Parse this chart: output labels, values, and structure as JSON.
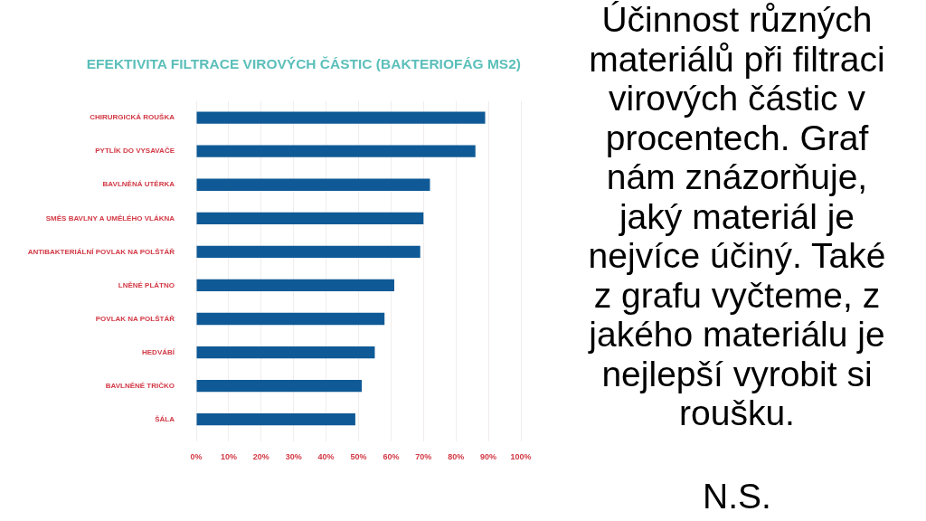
{
  "chart_data": {
    "type": "bar",
    "orientation": "horizontal",
    "title": "EFEKTIVITA FILTRACE VIROVÝCH ČÁSTIC (BAKTERIOFÁG MS2)",
    "categories": [
      "CHIRURGICKÁ ROUŠKA",
      "PYTLÍK DO VYSAVAČE",
      "BAVLNĚNÁ UTĚRKA",
      "SMĚS BAVLNY A UMĚLÉHO VLÁKNA",
      "ANTIBAKTERIÁLNÍ POVLAK NA POLŠTÁŘ",
      "LNĚNÉ PLÁTNO",
      "POVLAK NA POLŠTÁŘ",
      "HEDVÁBÍ",
      "BAVLNĚNÉ TRIČKO",
      "ŠÁLA"
    ],
    "values": [
      89,
      86,
      72,
      70,
      69,
      61,
      58,
      55,
      51,
      49
    ],
    "color": "#0f5a96",
    "xlim": [
      0,
      100
    ],
    "xticks": [
      {
        "value": 0,
        "label": "0%"
      },
      {
        "value": 10,
        "label": "10%"
      },
      {
        "value": 20,
        "label": "20%"
      },
      {
        "value": 30,
        "label": "30%"
      },
      {
        "value": 40,
        "label": "40%"
      },
      {
        "value": 50,
        "label": "50%"
      },
      {
        "value": 60,
        "label": "60%"
      },
      {
        "value": 70,
        "label": "70%"
      },
      {
        "value": 80,
        "label": "80%"
      },
      {
        "value": 90,
        "label": "90%"
      },
      {
        "value": 100,
        "label": "100%"
      }
    ],
    "grid": "x",
    "annotations": [
      "Účinnost různých materiálů při filtraci virových částic v procentech. Graf nám znázorňuje, jaký materiál je nejvíce účiný. Také z grafu vyčteme, z jakého materiálu je nejlepší vyrobit si roušku.",
      "N.S."
    ]
  }
}
